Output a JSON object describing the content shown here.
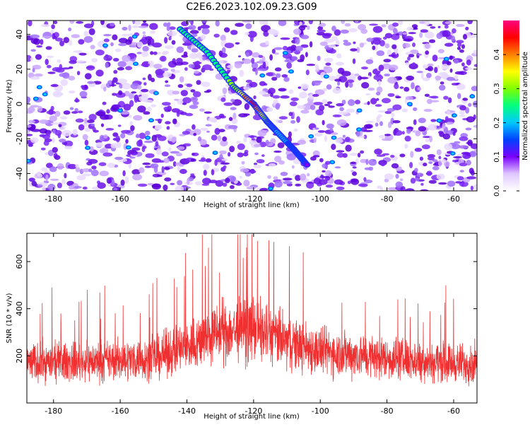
{
  "title": "C2E6.2023.102.09.23.G09",
  "colors": {
    "snr_line": "#f03030",
    "frame": "#000000"
  },
  "chart_data": [
    {
      "type": "heatmap",
      "title": "C2E6.2023.102.09.23.G09",
      "xlabel": "Height of straight line (km)",
      "ylabel": "Frequency (Hz)",
      "xlim": [
        -188,
        -53
      ],
      "ylim": [
        -50,
        48
      ],
      "x_ticks": [
        -180,
        -160,
        -140,
        -120,
        -100,
        -80,
        -60
      ],
      "y_ticks": [
        -40,
        -20,
        0,
        20,
        40
      ],
      "colorbar": {
        "label": "Normalized spectral amplitude",
        "range": [
          0,
          0.5
        ],
        "ticks": [
          0.0,
          0.1,
          0.2,
          0.3,
          0.4
        ],
        "colormap": [
          "#ffffff",
          "#e0c8ff",
          "#7b00ff",
          "#0040ff",
          "#00c8ff",
          "#00ff80",
          "#80ff00",
          "#ffff00",
          "#ff8000",
          "#ff0000",
          "#ff0080"
        ]
      },
      "ridge": {
        "description": "diagonal high-amplitude streak",
        "points": [
          {
            "x": -142,
            "y": 43,
            "amp": 0.25
          },
          {
            "x": -134,
            "y": 30,
            "amp": 0.25
          },
          {
            "x": -126,
            "y": 10,
            "amp": 0.28
          },
          {
            "x": -120,
            "y": 0,
            "amp": 0.45
          },
          {
            "x": -116,
            "y": -10,
            "amp": 0.3
          },
          {
            "x": -113,
            "y": -16,
            "amp": 0.22
          },
          {
            "x": -108,
            "y": -26,
            "amp": 0.15
          },
          {
            "x": -104,
            "y": -35,
            "amp": 0.12
          }
        ]
      }
    },
    {
      "type": "line",
      "xlabel": "Height of straight line (km)",
      "ylabel": "SNR (10 * v/v)",
      "xlim": [
        -188,
        -53
      ],
      "ylim": [
        0,
        720
      ],
      "x_ticks": [
        -180,
        -160,
        -140,
        -120,
        -100,
        -80,
        -60
      ],
      "y_ticks": [
        200,
        400,
        600
      ],
      "envelope": {
        "description": "dense noisy SNR trace, peak near center",
        "x": [
          -188,
          -170,
          -150,
          -140,
          -130,
          -120,
          -110,
          -100,
          -80,
          -60,
          -53
        ],
        "mean": [
          170,
          175,
          190,
          240,
          300,
          320,
          260,
          220,
          190,
          170,
          165
        ],
        "spread": [
          120,
          120,
          130,
          160,
          190,
          200,
          170,
          150,
          130,
          120,
          120
        ]
      }
    }
  ]
}
